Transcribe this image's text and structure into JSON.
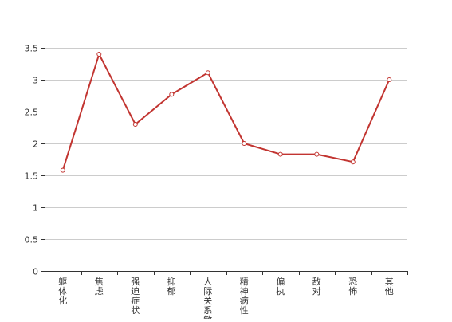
{
  "chart_data": {
    "type": "line",
    "title": "",
    "xlabel": "",
    "ylabel": "",
    "categories": [
      "躯体化",
      "焦虑",
      "强迫症状",
      "抑郁",
      "人际关系敏感",
      "精神病性",
      "偏执",
      "敌对",
      "恐怖",
      "其他"
    ],
    "series": [
      {
        "values": [
          1.58,
          3.4,
          2.3,
          2.77,
          3.11,
          2.0,
          1.83,
          1.83,
          1.71,
          3.0
        ]
      }
    ],
    "yticks": [
      "0",
      "0.5",
      "1",
      "1.5",
      "2",
      "2.5",
      "3",
      "3.5"
    ],
    "ylim": [
      0,
      3.5
    ],
    "grid": true,
    "legend": "none",
    "line_color": "#c23531",
    "grid_color": "#cccccc",
    "axis_color": "#333333"
  }
}
